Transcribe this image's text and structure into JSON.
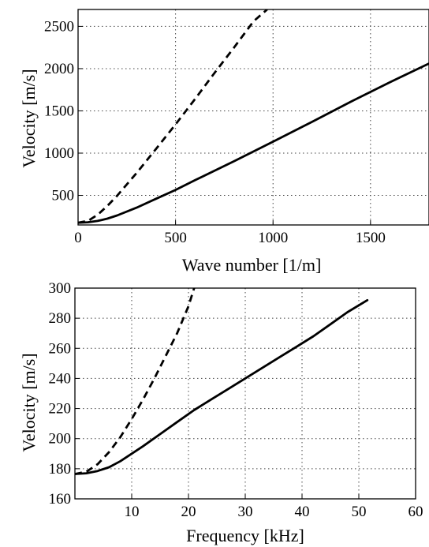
{
  "chart_data": [
    {
      "type": "line",
      "xlabel": "Wave number [1/m]",
      "ylabel": "Velocity [m/s]",
      "xlim": [
        0,
        1800
      ],
      "ylim": [
        150,
        2700
      ],
      "x_ticks": [
        0,
        500,
        1000,
        1500
      ],
      "y_ticks": [
        500,
        1000,
        1500,
        2000,
        2500
      ],
      "grid": true,
      "series": [
        {
          "style": "solid",
          "x": [
            0,
            50,
            100,
            150,
            200,
            300,
            400,
            500,
            600,
            800,
            1000,
            1200,
            1400,
            1600,
            1800
          ],
          "y": [
            176,
            182,
            198,
            225,
            262,
            355,
            460,
            565,
            680,
            905,
            1135,
            1370,
            1610,
            1840,
            2060
          ]
        },
        {
          "style": "dashed",
          "x": [
            0,
            50,
            100,
            150,
            200,
            300,
            400,
            500,
            600,
            700,
            800,
            900,
            970
          ],
          "y": [
            176,
            198,
            270,
            375,
            495,
            765,
            1050,
            1340,
            1640,
            1950,
            2250,
            2560,
            2700
          ]
        }
      ]
    },
    {
      "type": "line",
      "xlabel": "Frequency [kHz]",
      "ylabel": "Velocity [m/s]",
      "xlim": [
        0,
        60
      ],
      "ylim": [
        160,
        300
      ],
      "x_ticks": [
        10,
        20,
        30,
        40,
        50,
        60
      ],
      "y_ticks": [
        160,
        180,
        200,
        220,
        240,
        260,
        280,
        300
      ],
      "grid": true,
      "series": [
        {
          "style": "solid",
          "x": [
            0,
            2,
            4,
            6,
            8,
            10,
            12,
            15,
            18,
            21,
            24,
            27,
            30,
            33,
            36,
            39,
            42,
            45,
            48,
            51.5
          ],
          "y": [
            176.5,
            177,
            178.5,
            181,
            185,
            190,
            195,
            203,
            211,
            219,
            226,
            233,
            240,
            247,
            254,
            261,
            268,
            276,
            284,
            292
          ]
        },
        {
          "style": "dashed",
          "x": [
            0,
            2,
            4,
            6,
            8,
            10,
            12,
            14,
            16,
            18,
            20,
            21
          ],
          "y": [
            176.5,
            178,
            183,
            191,
            201,
            213,
            226,
            240,
            255,
            270,
            288,
            300
          ]
        }
      ]
    }
  ]
}
